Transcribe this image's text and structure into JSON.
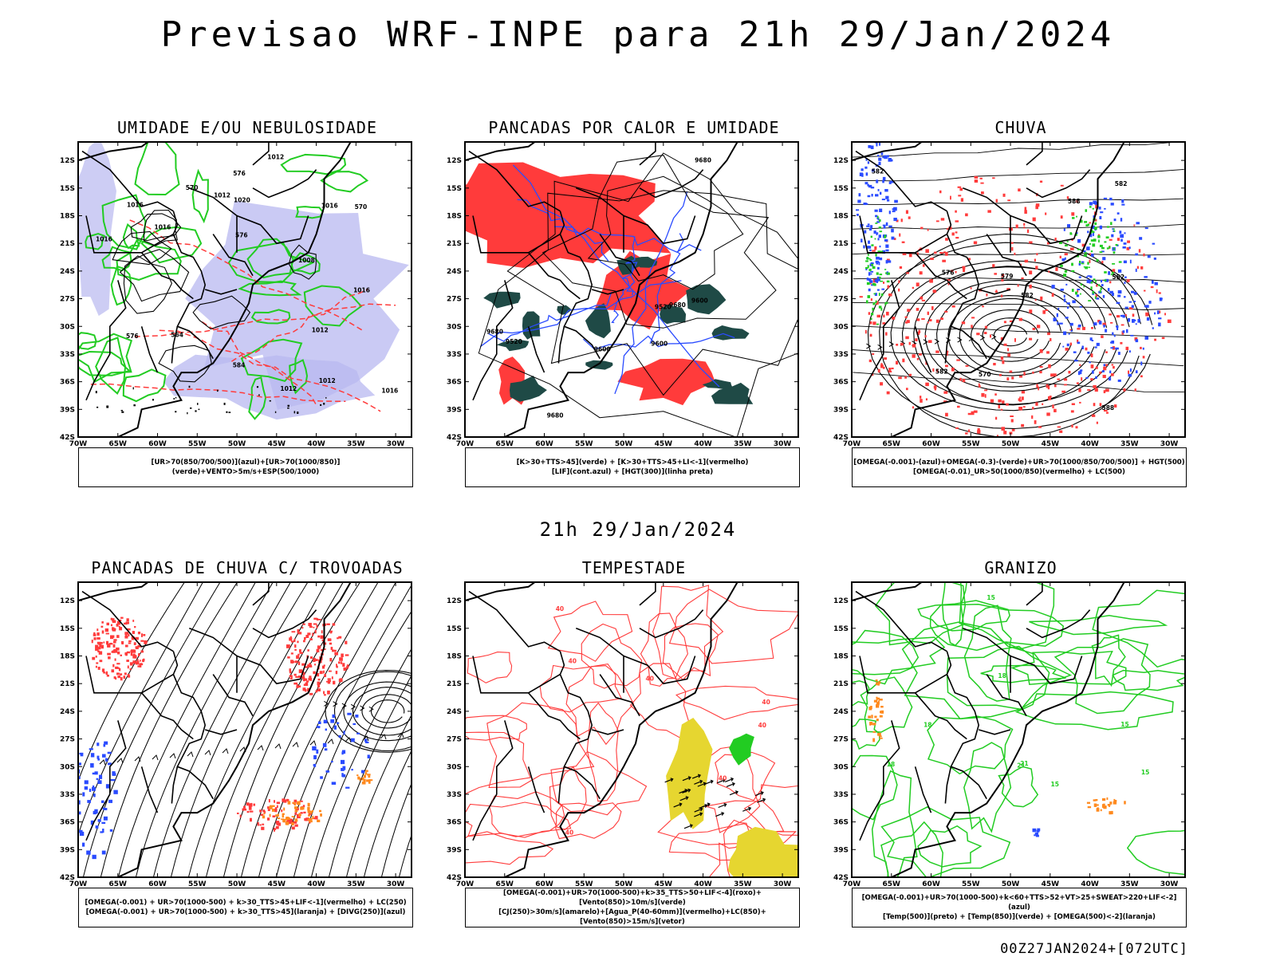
{
  "title": "Previsao WRF-INPE  para 21h 29/Jan/2024",
  "middle_title": "21h 29/Jan/2024",
  "footer": "00Z27JAN2024+[072UTC]",
  "lat_labels": [
    "12S",
    "15S",
    "18S",
    "21S",
    "24S",
    "27S",
    "30S",
    "33S",
    "36S",
    "39S",
    "42S"
  ],
  "lon_labels": [
    "70W",
    "65W",
    "60W",
    "55W",
    "50W",
    "45W",
    "40W",
    "35W",
    "30W"
  ],
  "colors": {
    "red": "#ff3b3b",
    "green": "#22cc22",
    "blue": "#2a4bff",
    "lavender": "#b8b8f0",
    "darkteal": "#1f4a46",
    "yellow": "#e6d630",
    "orange": "#ff8a1f",
    "purple": "#b000d8",
    "black": "#000000"
  },
  "panels": [
    {
      "id": "p1",
      "title": "UMIDADE E/OU NEBULOSIDADE",
      "legend": [
        "[UR>70(850/700/500)](azul)+[UR>70(1000/850)](verde)+VENTO>5m/s+ESP(500/1000)"
      ],
      "contour_labels": [
        "1012",
        "1016",
        "1016",
        "1008",
        "1016",
        "1016",
        "1012",
        "1012",
        "1012",
        "1016",
        "1016",
        "1020",
        "1012",
        "576",
        "576",
        "576",
        "564",
        "570",
        "570",
        "584"
      ]
    },
    {
      "id": "p2",
      "title": "PANCADAS POR CALOR E UMIDADE",
      "legend": [
        "[K>30+TTS>45](verde)  +  [K>30+TTS>45+LI<-1](vermelho)",
        "[LIF](cont.azul)  +  [HGT(300)](linha preta)"
      ],
      "contour_labels": [
        "9680",
        "9680",
        "9600",
        "9680",
        "9600",
        "9520",
        "9600",
        "9520",
        "9680"
      ]
    },
    {
      "id": "p3",
      "title": "CHUVA",
      "legend": [
        "[OMEGA(-0.001)-(azul)+OMEGA(-0.3)-(verde)+UR>70(1000/850/700/500)]  +  HGT(500)",
        "[OMEGA(-0.01)_UR>50(1000/850)(vermelho)  +  LC(500)"
      ],
      "contour_labels": [
        "582",
        "582",
        "576",
        "588",
        "582",
        "582",
        "579",
        "570",
        "582",
        "588"
      ]
    },
    {
      "id": "p4",
      "title": "PANCADAS DE CHUVA C/ TROVOADAS",
      "legend": [
        "[OMEGA(-0.001)  +  UR>70(1000-500)  +  k>30_TTS>45+LIF<-1](vermelho)  +  LC(250)",
        "[OMEGA(-0.001)  +  UR>70(1000-500)  +  k>30_TTS>45](laranja)  +  [DIVG(250)](azul)"
      ],
      "contour_labels": []
    },
    {
      "id": "p5",
      "title": "TEMPESTADE",
      "legend": [
        "[OMEGA(-0.001)+UR>70(1000-500)+k>35_TTS>50+LIF<-4](roxo)+[Vento(850)>10m/s](verde)",
        "[CJ(250)>30m/s](amarelo)+[Agua_P(40-60mm)](vermelho)+LC(850)+[Vento(850)>15m/s](vetor)"
      ],
      "contour_labels": [
        "40",
        "40",
        "40",
        "40",
        "40",
        "40",
        "40"
      ]
    },
    {
      "id": "p6",
      "title": "GRANIZO",
      "legend": [
        "[OMEGA(-0.001)+UR>70(1000-500)+k<60+TTS>52+VT>25+SWEAT>220+LIF<-2](azul)",
        "[Temp(500)](preto)  +  [Temp(850)](verde)  +  [OMEGA(500)<-2](laranja)"
      ],
      "contour_labels": [
        "15",
        "18",
        "21",
        "18",
        "15",
        "21",
        "18",
        "15",
        "15"
      ]
    }
  ]
}
